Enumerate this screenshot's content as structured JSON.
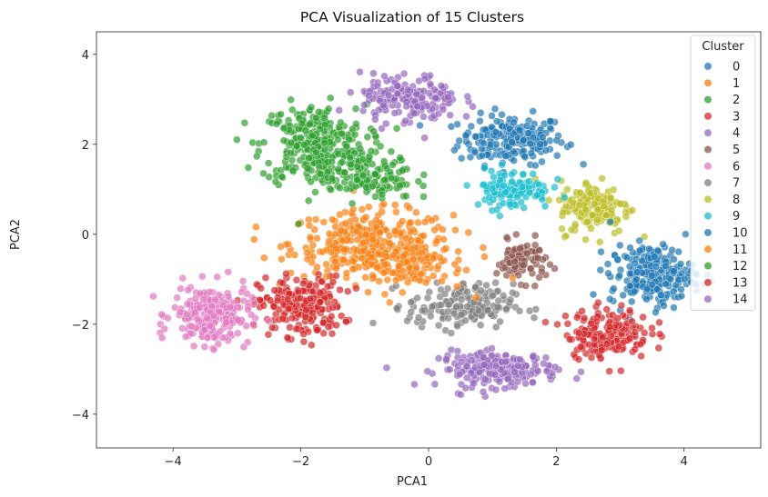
{
  "chart_data": {
    "type": "scatter",
    "title": "PCA Visualization of 15 Clusters",
    "xlabel": "PCA1",
    "ylabel": "PCA2",
    "xlim": [
      -5.2,
      5.2
    ],
    "ylim": [
      -4.75,
      4.5
    ],
    "xticks": [
      -4,
      -2,
      0,
      2,
      4
    ],
    "xtick_labels": [
      "−4",
      "−2",
      "0",
      "2",
      "4"
    ],
    "yticks": [
      -4,
      -2,
      0,
      2,
      4
    ],
    "ytick_labels": [
      "−4",
      "−2",
      "0",
      "2",
      "4"
    ],
    "grid": false,
    "legend": {
      "title": "Cluster",
      "placement": "top-right"
    },
    "series": [
      {
        "name": "0",
        "color": "#1f77b4",
        "center": [
          1.3,
          2.1
        ],
        "spread": [
          0.75,
          0.5
        ],
        "n": 200
      },
      {
        "name": "1",
        "color": "#ff7f0e",
        "center": [
          -0.9,
          -0.2
        ],
        "spread": [
          1.15,
          0.65
        ],
        "n": 300
      },
      {
        "name": "2",
        "color": "#2ca02c",
        "center": [
          -1.8,
          2.0
        ],
        "spread": [
          0.75,
          0.8
        ],
        "n": 280
      },
      {
        "name": "3",
        "color": "#d62728",
        "center": [
          -2.0,
          -1.6
        ],
        "spread": [
          0.6,
          0.6
        ],
        "n": 210
      },
      {
        "name": "4",
        "color": "#9467bd",
        "center": [
          1.1,
          -3.0
        ],
        "spread": [
          0.85,
          0.35
        ],
        "n": 190
      },
      {
        "name": "5",
        "color": "#8c564b",
        "center": [
          1.45,
          -0.6
        ],
        "spread": [
          0.35,
          0.4
        ],
        "n": 90
      },
      {
        "name": "6",
        "color": "#e377c2",
        "center": [
          -3.4,
          -1.8
        ],
        "spread": [
          0.55,
          0.6
        ],
        "n": 220
      },
      {
        "name": "7",
        "color": "#7f7f7f",
        "center": [
          0.5,
          -1.6
        ],
        "spread": [
          0.75,
          0.45
        ],
        "n": 170
      },
      {
        "name": "8",
        "color": "#bcbd22",
        "center": [
          2.6,
          0.6
        ],
        "spread": [
          0.5,
          0.55
        ],
        "n": 150
      },
      {
        "name": "9",
        "color": "#17becf",
        "center": [
          1.3,
          1.0
        ],
        "spread": [
          0.55,
          0.4
        ],
        "n": 120
      },
      {
        "name": "10",
        "color": "#1f77b4",
        "center": [
          3.5,
          -0.9
        ],
        "spread": [
          0.6,
          0.6
        ],
        "n": 220
      },
      {
        "name": "11",
        "color": "#ff7f0e",
        "center": [
          -0.5,
          -0.7
        ],
        "spread": [
          1.0,
          0.5
        ],
        "n": 120
      },
      {
        "name": "12",
        "color": "#2ca02c",
        "center": [
          -1.0,
          1.3
        ],
        "spread": [
          0.7,
          0.5
        ],
        "n": 140
      },
      {
        "name": "13",
        "color": "#d62728",
        "center": [
          2.8,
          -2.2
        ],
        "spread": [
          0.6,
          0.5
        ],
        "n": 180
      },
      {
        "name": "14",
        "color": "#9467bd",
        "center": [
          -0.3,
          3.0
        ],
        "spread": [
          0.7,
          0.5
        ],
        "n": 170
      }
    ]
  }
}
